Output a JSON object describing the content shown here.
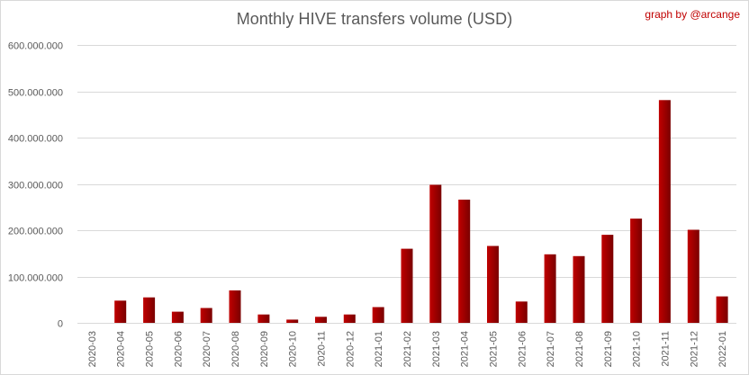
{
  "title": "Monthly HIVE transfers volume (USD)",
  "credit": "graph by @arcange",
  "colors": {
    "bar_light": "#c00000",
    "bar_dark": "#7a0000",
    "grid": "#d9d9d9",
    "axis_text": "#595959",
    "credit": "#c00000"
  },
  "chart_data": {
    "type": "bar",
    "title": "Monthly HIVE transfers volume (USD)",
    "xlabel": "",
    "ylabel": "",
    "ylim": [
      0,
      600000000
    ],
    "yticks": [
      0,
      100000000,
      200000000,
      300000000,
      400000000,
      500000000,
      600000000
    ],
    "ytick_labels": [
      "0",
      "100.000.000",
      "200.000.000",
      "300.000.000",
      "400.000.000",
      "500.000.000",
      "600.000.000"
    ],
    "grid": true,
    "legend": "none",
    "categories": [
      "2020-03",
      "2020-04",
      "2020-05",
      "2020-06",
      "2020-07",
      "2020-08",
      "2020-09",
      "2020-10",
      "2020-11",
      "2020-12",
      "2021-01",
      "2021-02",
      "2021-03",
      "2021-04",
      "2021-05",
      "2021-06",
      "2021-07",
      "2021-08",
      "2021-09",
      "2021-10",
      "2021-11",
      "2021-12",
      "2022-01"
    ],
    "values": [
      0,
      48000000,
      55000000,
      24000000,
      32000000,
      70000000,
      18000000,
      7000000,
      13000000,
      18000000,
      34000000,
      160000000,
      298000000,
      266000000,
      166000000,
      46000000,
      148000000,
      144000000,
      190000000,
      225000000,
      481000000,
      201000000,
      57000000
    ]
  }
}
